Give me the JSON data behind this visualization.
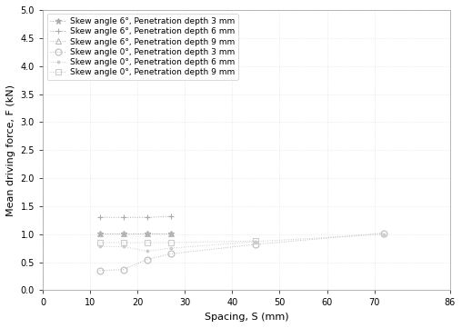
{
  "title": "",
  "xlabel": "Spacing, S (mm)",
  "ylabel": "Mean driving force, F (kN)",
  "xlim": [
    0,
    86
  ],
  "ylim": [
    0.0,
    5.0
  ],
  "xticks": [
    0,
    10,
    20,
    30,
    40,
    50,
    60,
    70,
    86
  ],
  "yticks": [
    0.0,
    0.5,
    1.0,
    1.5,
    2.0,
    2.5,
    3.0,
    3.5,
    4.0,
    4.5,
    5.0
  ],
  "series": [
    {
      "label": "Skew angle 6°, Penetration depth 3 mm",
      "x": [
        12,
        17,
        22,
        27
      ],
      "y": [
        1.02,
        1.02,
        1.02,
        1.02
      ],
      "marker": "*",
      "color": "#aaaaaa",
      "linestyle": "dotted",
      "markerfacecolor": "#aaaaaa"
    },
    {
      "label": "Skew angle 6°, Penetration depth 6 mm",
      "x": [
        12,
        17,
        22,
        27
      ],
      "y": [
        1.3,
        1.3,
        1.3,
        1.32
      ],
      "marker": "+",
      "color": "#aaaaaa",
      "linestyle": "dotted",
      "markerfacecolor": "#aaaaaa"
    },
    {
      "label": "Skew angle 6°, Penetration depth 9 mm",
      "x": [
        12,
        17,
        22,
        27
      ],
      "y": [
        1.02,
        1.02,
        1.02,
        1.02
      ],
      "marker": "^",
      "color": "#bbbbbb",
      "linestyle": "dotted",
      "markerfacecolor": "none"
    },
    {
      "label": "Skew angle 0°, Penetration depth 3 mm",
      "x": [
        12,
        17,
        22,
        27,
        45,
        72
      ],
      "y": [
        0.35,
        0.37,
        0.55,
        0.65,
        0.82,
        1.02
      ],
      "marker": "o",
      "color": "#bbbbbb",
      "linestyle": "dotted",
      "markerfacecolor": "none"
    },
    {
      "label": "Skew angle 0°, Penetration depth 6 mm",
      "x": [
        12,
        17,
        22,
        27,
        45,
        72
      ],
      "y": [
        0.78,
        0.78,
        0.7,
        0.75,
        0.87,
        1.0
      ],
      "marker": ".",
      "color": "#cccccc",
      "linestyle": "dotted",
      "markerfacecolor": "#cccccc"
    },
    {
      "label": "Skew angle 0°, Penetration depth 9 mm",
      "x": [
        12,
        17,
        22,
        27,
        45
      ],
      "y": [
        0.85,
        0.85,
        0.85,
        0.85,
        0.88
      ],
      "marker": "s",
      "color": "#cccccc",
      "linestyle": "dotted",
      "markerfacecolor": "none"
    }
  ],
  "legend_fontsize": 6.5,
  "axis_fontsize": 8,
  "tick_fontsize": 7,
  "background_color": "#ffffff",
  "grid_color": "#dddddd"
}
